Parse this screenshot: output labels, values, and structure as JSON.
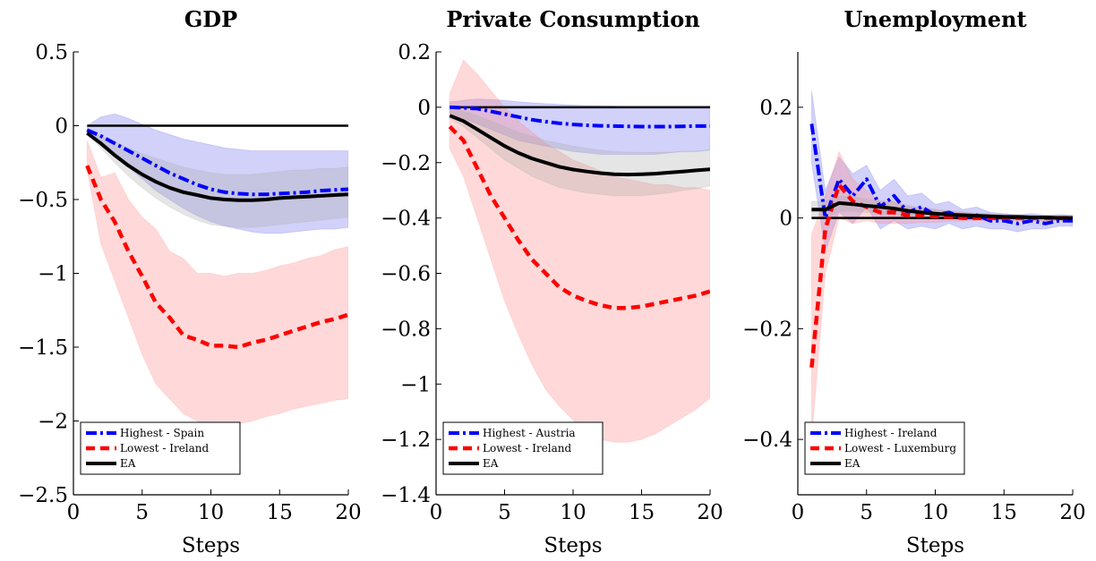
{
  "chart_data": [
    {
      "type": "line",
      "title": "GDP",
      "xlabel": "Steps",
      "ylabel": "",
      "xlim": [
        0,
        20
      ],
      "ylim": [
        -2.5,
        0.5
      ],
      "xticks": [
        0,
        5,
        10,
        15,
        20
      ],
      "yticks": [
        -2.5,
        -2,
        -1.5,
        -1,
        -0.5,
        0,
        0.5
      ],
      "ytick_labels": [
        "−2.5",
        "−2",
        "−1.5",
        "−1",
        "−0.5",
        "0",
        "0.5"
      ],
      "xtick_labels": [
        "0",
        "5",
        "10",
        "15",
        "20"
      ],
      "zero_line": true,
      "legend_position": "bottom-left",
      "x": [
        1,
        2,
        3,
        4,
        5,
        6,
        7,
        8,
        9,
        10,
        11,
        12,
        13,
        14,
        15,
        16,
        17,
        18,
        19,
        20
      ],
      "series": [
        {
          "name": "Highest - Spain",
          "style": "dashdot",
          "color": "#0000ff",
          "band_color": "#6666ee",
          "values": [
            -0.03,
            -0.07,
            -0.12,
            -0.17,
            -0.22,
            -0.27,
            -0.32,
            -0.36,
            -0.4,
            -0.43,
            -0.45,
            -0.46,
            -0.465,
            -0.465,
            -0.46,
            -0.455,
            -0.45,
            -0.44,
            -0.435,
            -0.43
          ],
          "band_lower": [
            -0.05,
            -0.12,
            -0.2,
            -0.28,
            -0.36,
            -0.44,
            -0.5,
            -0.56,
            -0.61,
            -0.65,
            -0.68,
            -0.7,
            -0.72,
            -0.73,
            -0.73,
            -0.72,
            -0.71,
            -0.7,
            -0.7,
            -0.69
          ],
          "band_upper": [
            0.0,
            0.06,
            0.08,
            0.05,
            0.01,
            -0.03,
            -0.06,
            -0.09,
            -0.11,
            -0.13,
            -0.15,
            -0.16,
            -0.17,
            -0.17,
            -0.17,
            -0.17,
            -0.17,
            -0.17,
            -0.17,
            -0.17
          ]
        },
        {
          "name": "Lowest - Ireland",
          "style": "dashed",
          "color": "#ff0000",
          "band_color": "#ff8080",
          "values": [
            -0.27,
            -0.5,
            -0.65,
            -0.85,
            -1.02,
            -1.2,
            -1.3,
            -1.42,
            -1.45,
            -1.49,
            -1.49,
            -1.5,
            -1.47,
            -1.45,
            -1.42,
            -1.39,
            -1.36,
            -1.33,
            -1.31,
            -1.28
          ],
          "band_lower": [
            -0.3,
            -0.8,
            -1.05,
            -1.3,
            -1.55,
            -1.75,
            -1.85,
            -1.95,
            -2.0,
            -2.02,
            -2.04,
            -2.02,
            -2.0,
            -1.97,
            -1.95,
            -1.92,
            -1.9,
            -1.88,
            -1.86,
            -1.85
          ],
          "band_upper": [
            -0.1,
            -0.35,
            -0.32,
            -0.5,
            -0.62,
            -0.7,
            -0.85,
            -0.9,
            -1.0,
            -1.0,
            -1.02,
            -1.0,
            -1.0,
            -0.98,
            -0.95,
            -0.93,
            -0.9,
            -0.88,
            -0.84,
            -0.82
          ]
        },
        {
          "name": "EA",
          "style": "solid",
          "color": "#000000",
          "band_color": "#a8a8a8",
          "values": [
            -0.05,
            -0.12,
            -0.2,
            -0.27,
            -0.33,
            -0.38,
            -0.42,
            -0.45,
            -0.47,
            -0.49,
            -0.5,
            -0.505,
            -0.505,
            -0.5,
            -0.49,
            -0.485,
            -0.48,
            -0.475,
            -0.47,
            -0.465
          ],
          "band_lower": [
            -0.06,
            -0.15,
            -0.25,
            -0.34,
            -0.42,
            -0.49,
            -0.55,
            -0.6,
            -0.64,
            -0.67,
            -0.68,
            -0.69,
            -0.69,
            -0.68,
            -0.67,
            -0.66,
            -0.65,
            -0.64,
            -0.63,
            -0.62
          ],
          "band_upper": [
            -0.03,
            -0.07,
            -0.11,
            -0.15,
            -0.19,
            -0.22,
            -0.25,
            -0.28,
            -0.3,
            -0.32,
            -0.33,
            -0.33,
            -0.33,
            -0.32,
            -0.31,
            -0.3,
            -0.3,
            -0.29,
            -0.29,
            -0.28
          ]
        }
      ]
    },
    {
      "type": "line",
      "title": "Private Consumption",
      "xlabel": "Steps",
      "ylabel": "",
      "xlim": [
        0,
        20
      ],
      "ylim": [
        -1.4,
        0.2
      ],
      "xticks": [
        0,
        5,
        10,
        15,
        20
      ],
      "yticks": [
        -1.4,
        -1.2,
        -1,
        -0.8,
        -0.6,
        -0.4,
        -0.2,
        0,
        0.2
      ],
      "ytick_labels": [
        "−1.4",
        "−1.2",
        "−1",
        "−0.8",
        "−0.6",
        "−0.4",
        "−0.2",
        "0",
        "0.2"
      ],
      "xtick_labels": [
        "0",
        "5",
        "10",
        "15",
        "20"
      ],
      "zero_line": true,
      "legend_position": "bottom-left",
      "x": [
        1,
        2,
        3,
        4,
        5,
        6,
        7,
        8,
        9,
        10,
        11,
        12,
        13,
        14,
        15,
        16,
        17,
        18,
        19,
        20
      ],
      "series": [
        {
          "name": "Highest - Austria",
          "style": "dashdot",
          "color": "#0000ff",
          "band_color": "#6666ee",
          "values": [
            0.0,
            -0.002,
            -0.005,
            -0.015,
            -0.025,
            -0.035,
            -0.045,
            -0.052,
            -0.058,
            -0.062,
            -0.065,
            -0.067,
            -0.068,
            -0.069,
            -0.07,
            -0.07,
            -0.07,
            -0.069,
            -0.068,
            -0.068
          ],
          "band_lower": [
            -0.02,
            -0.04,
            -0.06,
            -0.08,
            -0.1,
            -0.12,
            -0.13,
            -0.14,
            -0.15,
            -0.16,
            -0.165,
            -0.17,
            -0.17,
            -0.17,
            -0.17,
            -0.17,
            -0.165,
            -0.16,
            -0.16,
            -0.155
          ],
          "band_upper": [
            0.02,
            0.025,
            0.03,
            0.028,
            0.025,
            0.02,
            0.016,
            0.013,
            0.01,
            0.008,
            0.006,
            0.005,
            0.004,
            0.003,
            0.003,
            0.003,
            0.003,
            0.003,
            0.003,
            0.003
          ]
        },
        {
          "name": "Lowest - Ireland",
          "style": "dashed",
          "color": "#ff0000",
          "band_color": "#ff8080",
          "values": [
            -0.07,
            -0.12,
            -0.22,
            -0.32,
            -0.4,
            -0.48,
            -0.55,
            -0.6,
            -0.65,
            -0.68,
            -0.7,
            -0.715,
            -0.725,
            -0.725,
            -0.72,
            -0.71,
            -0.7,
            -0.69,
            -0.68,
            -0.665
          ],
          "band_lower": [
            -0.15,
            -0.25,
            -0.4,
            -0.55,
            -0.7,
            -0.82,
            -0.93,
            -1.02,
            -1.08,
            -1.13,
            -1.17,
            -1.2,
            -1.21,
            -1.21,
            -1.2,
            -1.18,
            -1.15,
            -1.12,
            -1.09,
            -1.05
          ],
          "band_upper": [
            0.05,
            0.17,
            0.12,
            0.06,
            0.0,
            -0.05,
            -0.09,
            -0.13,
            -0.16,
            -0.19,
            -0.21,
            -0.23,
            -0.25,
            -0.26,
            -0.27,
            -0.28,
            -0.28,
            -0.29,
            -0.29,
            -0.3
          ]
        },
        {
          "name": "EA",
          "style": "solid",
          "color": "#000000",
          "band_color": "#a8a8a8",
          "values": [
            -0.03,
            -0.05,
            -0.08,
            -0.11,
            -0.14,
            -0.165,
            -0.185,
            -0.2,
            -0.215,
            -0.225,
            -0.232,
            -0.238,
            -0.242,
            -0.243,
            -0.242,
            -0.24,
            -0.236,
            -0.232,
            -0.228,
            -0.224
          ],
          "band_lower": [
            -0.04,
            -0.07,
            -0.11,
            -0.15,
            -0.19,
            -0.22,
            -0.25,
            -0.27,
            -0.29,
            -0.3,
            -0.31,
            -0.315,
            -0.32,
            -0.32,
            -0.32,
            -0.315,
            -0.31,
            -0.3,
            -0.295,
            -0.285
          ],
          "band_upper": [
            -0.01,
            -0.015,
            -0.03,
            -0.05,
            -0.07,
            -0.09,
            -0.105,
            -0.12,
            -0.13,
            -0.14,
            -0.148,
            -0.155,
            -0.16,
            -0.162,
            -0.163,
            -0.163,
            -0.162,
            -0.16,
            -0.158,
            -0.155
          ]
        }
      ]
    },
    {
      "type": "line",
      "title": "Unemployment",
      "xlabel": "Steps",
      "ylabel": "",
      "xlim": [
        0,
        20
      ],
      "ylim": [
        -0.5,
        0.3
      ],
      "xticks": [
        0,
        5,
        10,
        15,
        20
      ],
      "yticks": [
        -0.4,
        -0.2,
        0,
        0.2
      ],
      "ytick_labels": [
        "−0.4",
        "−0.2",
        "0",
        "0.2"
      ],
      "xtick_labels": [
        "0",
        "5",
        "10",
        "15",
        "20"
      ],
      "zero_line": true,
      "legend_position": "bottom-left",
      "x": [
        1,
        2,
        3,
        4,
        5,
        6,
        7,
        8,
        9,
        10,
        11,
        12,
        13,
        14,
        15,
        16,
        17,
        18,
        19,
        20
      ],
      "series": [
        {
          "name": "Highest - Ireland",
          "style": "dashdot",
          "color": "#0000ff",
          "band_color": "#6666ee",
          "values": [
            0.17,
            0.0,
            0.07,
            0.04,
            0.07,
            0.02,
            0.04,
            0.01,
            0.02,
            0.005,
            0.01,
            0.0,
            0.005,
            -0.005,
            -0.005,
            -0.01,
            -0.005,
            -0.01,
            -0.005,
            -0.005
          ],
          "band_lower": [
            0.1,
            -0.06,
            0.01,
            -0.01,
            0.02,
            -0.02,
            -0.005,
            -0.02,
            -0.015,
            -0.02,
            -0.01,
            -0.02,
            -0.015,
            -0.02,
            -0.02,
            -0.025,
            -0.02,
            -0.02,
            -0.015,
            -0.015
          ],
          "band_upper": [
            0.23,
            0.05,
            0.11,
            0.08,
            0.095,
            0.05,
            0.07,
            0.04,
            0.045,
            0.025,
            0.03,
            0.015,
            0.02,
            0.01,
            0.008,
            0.005,
            0.008,
            0.005,
            0.006,
            0.005
          ]
        },
        {
          "name": "Lowest - Luxemburg",
          "style": "dashed",
          "color": "#ff0000",
          "band_color": "#ff8080",
          "values": [
            -0.27,
            -0.02,
            0.06,
            0.03,
            0.02,
            0.01,
            0.01,
            0.005,
            0.005,
            0.003,
            0.002,
            0.0,
            0.0,
            0.0,
            0.0,
            0.0,
            0.0,
            0.0,
            0.0,
            0.0
          ],
          "band_lower": [
            -0.4,
            -0.1,
            0.0,
            -0.01,
            -0.005,
            -0.01,
            -0.01,
            -0.01,
            -0.008,
            -0.008,
            -0.006,
            -0.006,
            -0.005,
            -0.005,
            -0.005,
            -0.005,
            -0.005,
            -0.005,
            -0.005,
            -0.005
          ],
          "band_upper": [
            -0.03,
            0.04,
            0.12,
            0.07,
            0.05,
            0.03,
            0.03,
            0.02,
            0.018,
            0.015,
            0.012,
            0.01,
            0.008,
            0.006,
            0.005,
            0.005,
            0.004,
            0.004,
            0.004,
            0.004
          ]
        },
        {
          "name": "EA",
          "style": "solid",
          "color": "#000000",
          "band_color": "#a8a8a8",
          "values": [
            0.015,
            0.015,
            0.027,
            0.025,
            0.022,
            0.02,
            0.017,
            0.013,
            0.01,
            0.008,
            0.006,
            0.005,
            0.004,
            0.003,
            0.002,
            0.002,
            0.001,
            0.001,
            0.0,
            0.0
          ],
          "band_lower": [
            0.0,
            0.0,
            0.012,
            0.012,
            0.01,
            0.008,
            0.006,
            0.004,
            0.002,
            0.0,
            -0.001,
            -0.002,
            -0.003,
            -0.003,
            -0.004,
            -0.004,
            -0.005,
            -0.005,
            -0.005,
            -0.005
          ],
          "band_upper": [
            0.03,
            0.03,
            0.04,
            0.038,
            0.034,
            0.031,
            0.028,
            0.023,
            0.019,
            0.016,
            0.013,
            0.011,
            0.009,
            0.008,
            0.007,
            0.006,
            0.005,
            0.004,
            0.004,
            0.004
          ]
        }
      ]
    }
  ]
}
